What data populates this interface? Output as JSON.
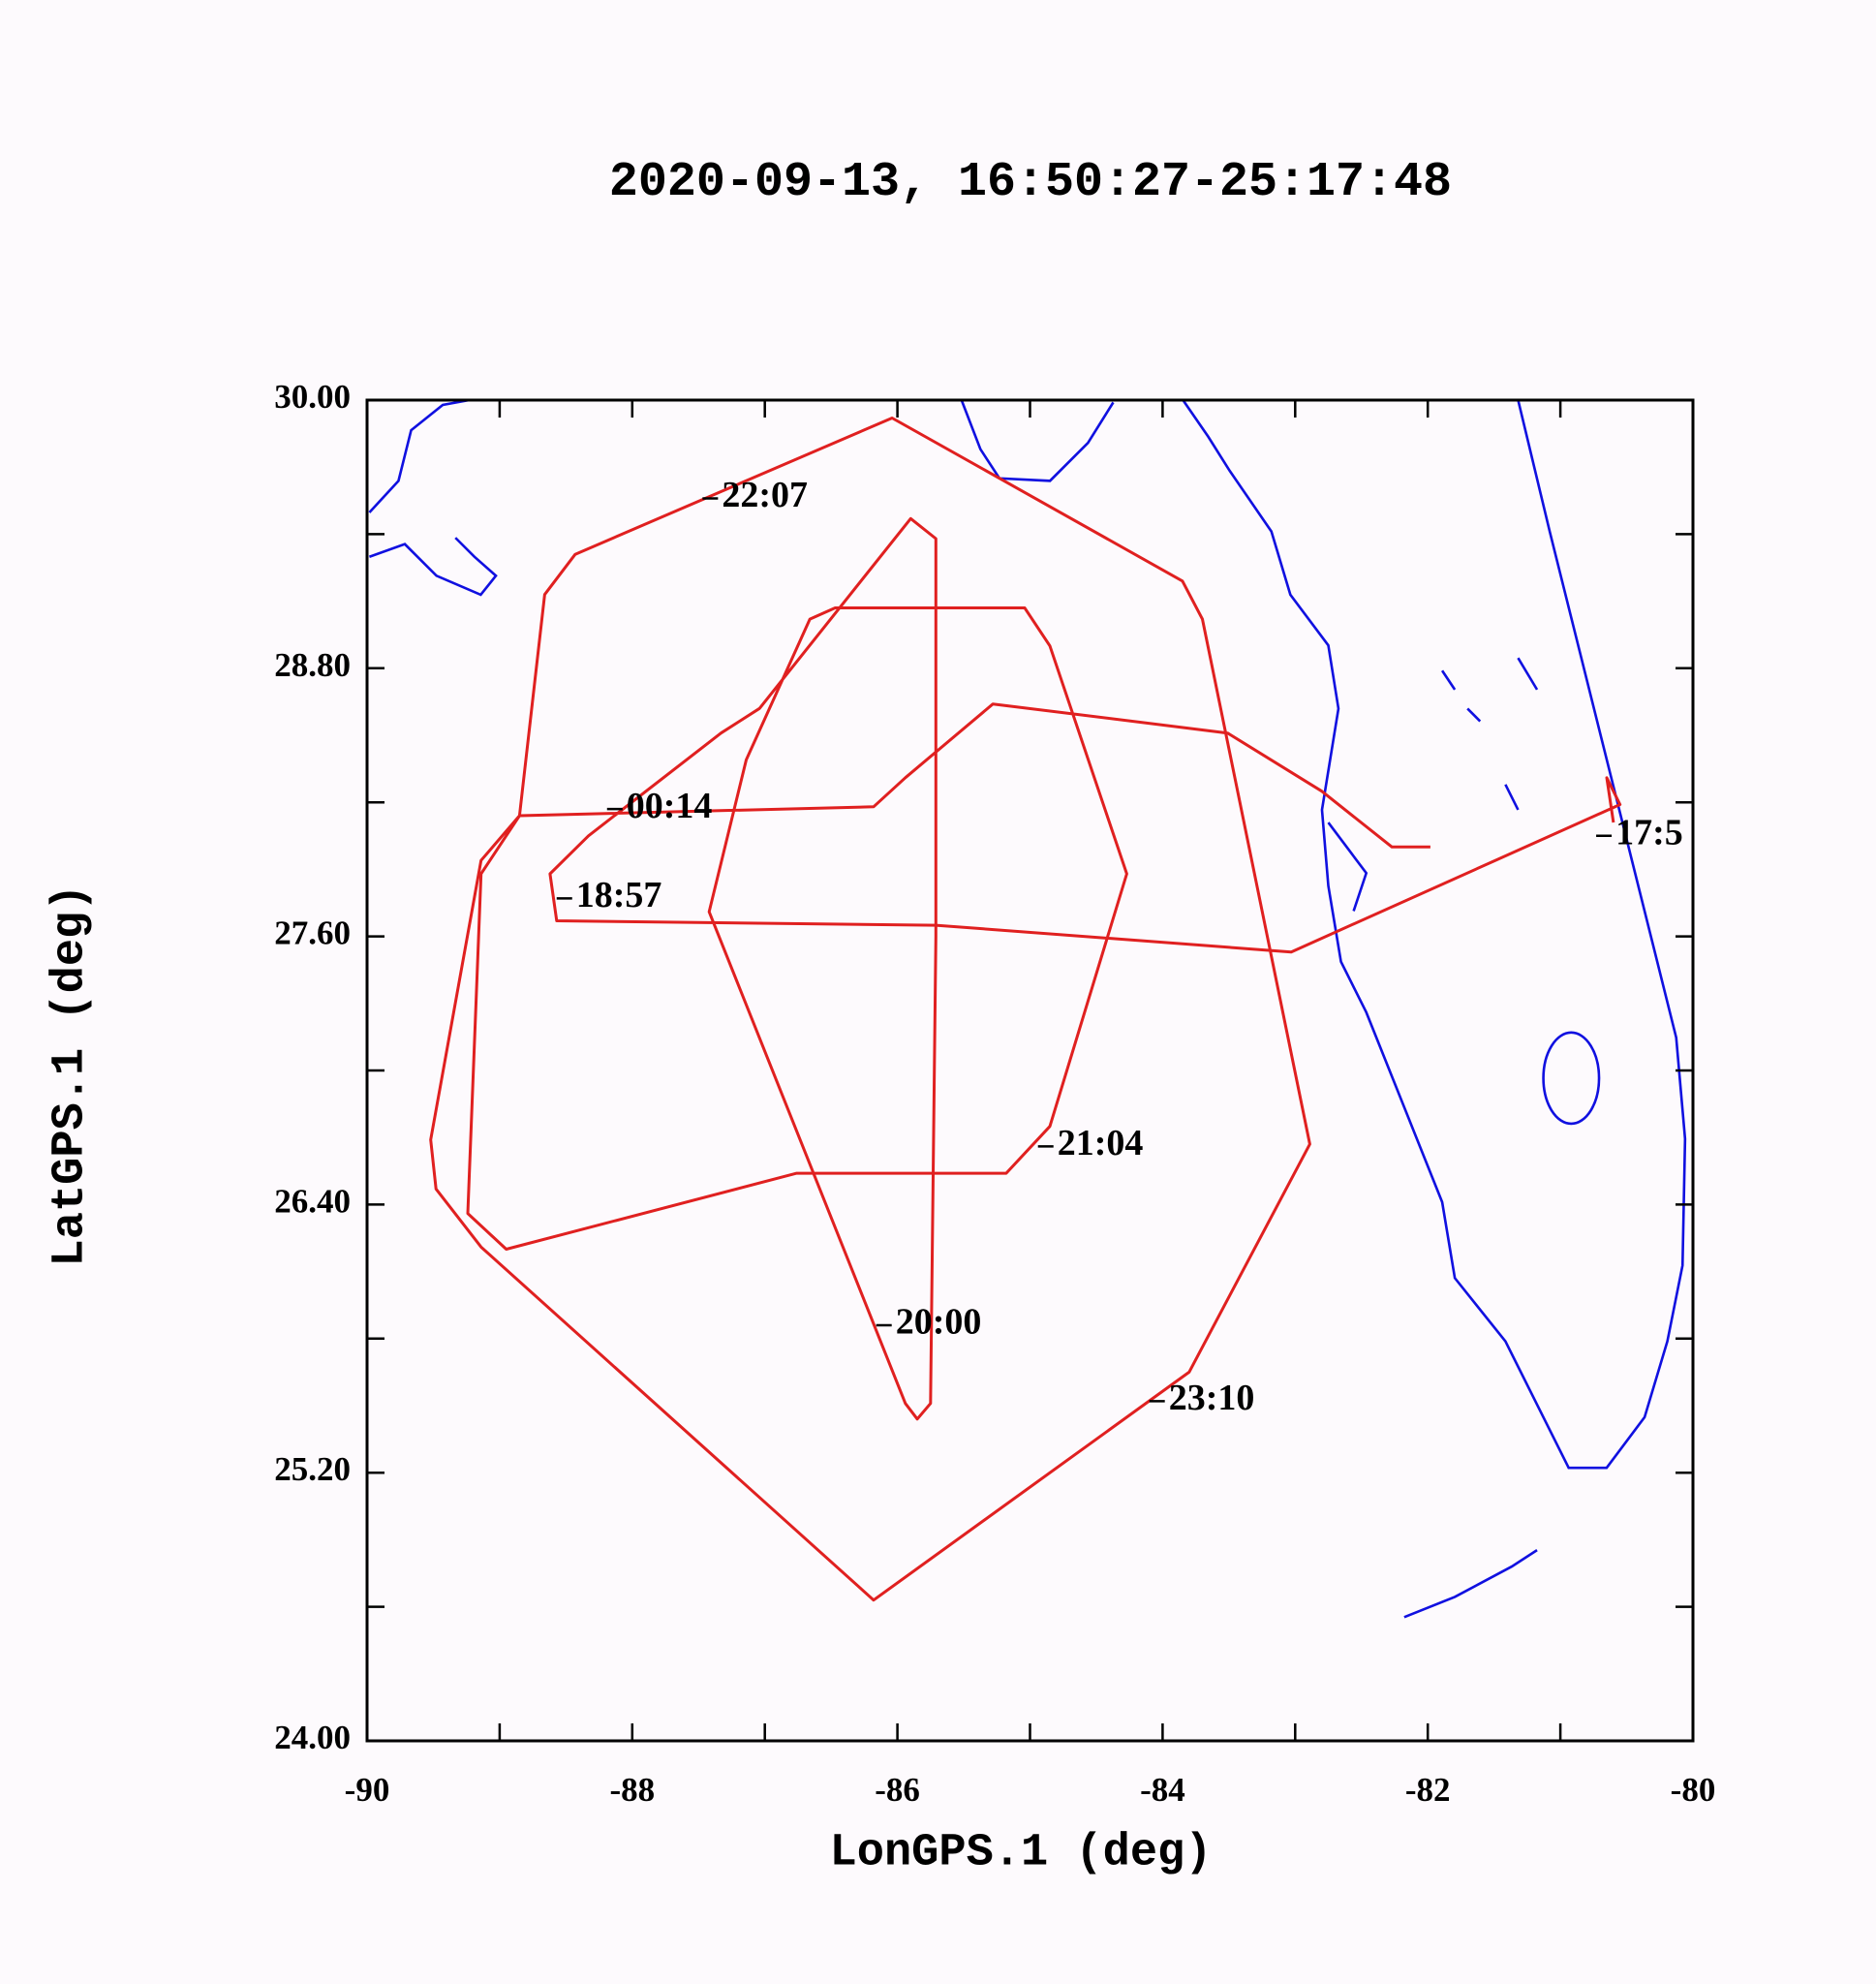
{
  "chart_data": {
    "type": "line",
    "title": "2020-09-13, 16:50:27-25:17:48",
    "x_label": "LonGPS.1 (deg)",
    "y_label": "LatGPS.1 (deg)",
    "xlim": [
      -90,
      -80
    ],
    "ylim": [
      24,
      30
    ],
    "xticks": [
      -90,
      -88,
      -86,
      -84,
      -82,
      -80
    ],
    "xminorticks": [
      -89,
      -87,
      -85,
      -83,
      -81
    ],
    "yticks": [
      {
        "value": 24,
        "label": "24.00"
      },
      {
        "value": 25.2,
        "label": "25.20"
      },
      {
        "value": 26.4,
        "label": "26.40"
      },
      {
        "value": 27.6,
        "label": "27.60"
      },
      {
        "value": 28.8,
        "label": "28.80"
      },
      {
        "value": 30,
        "label": "30.00"
      }
    ],
    "yminorticks": [
      24.6,
      25.8,
      27.0,
      28.2,
      29.4
    ],
    "series": [
      {
        "color": "#e02020",
        "x": [
          -80.6,
          -80.65,
          -80.55,
          -83.03,
          -85.71,
          -88.57,
          -88.62,
          -88.33,
          -87.33,
          -87.04,
          -85.9,
          -85.71,
          -85.71,
          -85.75,
          -85.85,
          -85.94,
          -87.42,
          -87.14,
          -86.66,
          -86.47,
          -85.04,
          -84.85,
          -84.27,
          -84.85,
          -85.18,
          -86.76,
          -88.95,
          -89.24,
          -89.14,
          -88.85,
          -88.66,
          -88.43,
          -86.04,
          -83.85,
          -83.7,
          -82.89,
          -83.8,
          -86.18,
          -89.14,
          -89.48,
          -89.52,
          -89.14,
          -88.85,
          -86.18,
          -85.94,
          -85.28,
          -83.51,
          -82.8,
          -82.27,
          -81.98
        ],
        "values": [
          28.11,
          28.31,
          28.19,
          27.53,
          27.65,
          27.67,
          27.88,
          28.05,
          28.51,
          28.62,
          29.47,
          29.38,
          27.6,
          25.51,
          25.44,
          25.51,
          27.71,
          28.39,
          29.02,
          29.07,
          29.07,
          28.9,
          27.88,
          26.75,
          26.54,
          26.54,
          26.2,
          26.36,
          27.88,
          28.14,
          29.13,
          29.31,
          29.92,
          29.19,
          29.02,
          26.67,
          25.65,
          24.63,
          26.21,
          26.47,
          26.69,
          27.94,
          28.14,
          28.18,
          28.31,
          28.64,
          28.51,
          28.25,
          28.0,
          28.0
        ]
      }
    ],
    "annotations": [
      {
        "text": "22:07",
        "x": -87.47,
        "y": 29.56
      },
      {
        "text": "00:14",
        "x": -88.19,
        "y": 28.17
      },
      {
        "text": "18:57",
        "x": -88.57,
        "y": 27.77
      },
      {
        "text": "21:04",
        "x": -84.94,
        "y": 26.66
      },
      {
        "text": "20:00",
        "x": -86.16,
        "y": 25.86
      },
      {
        "text": "23:10",
        "x": -84.1,
        "y": 25.52
      },
      {
        "text": "17:5",
        "x": -80.73,
        "y": 28.05
      }
    ]
  }
}
